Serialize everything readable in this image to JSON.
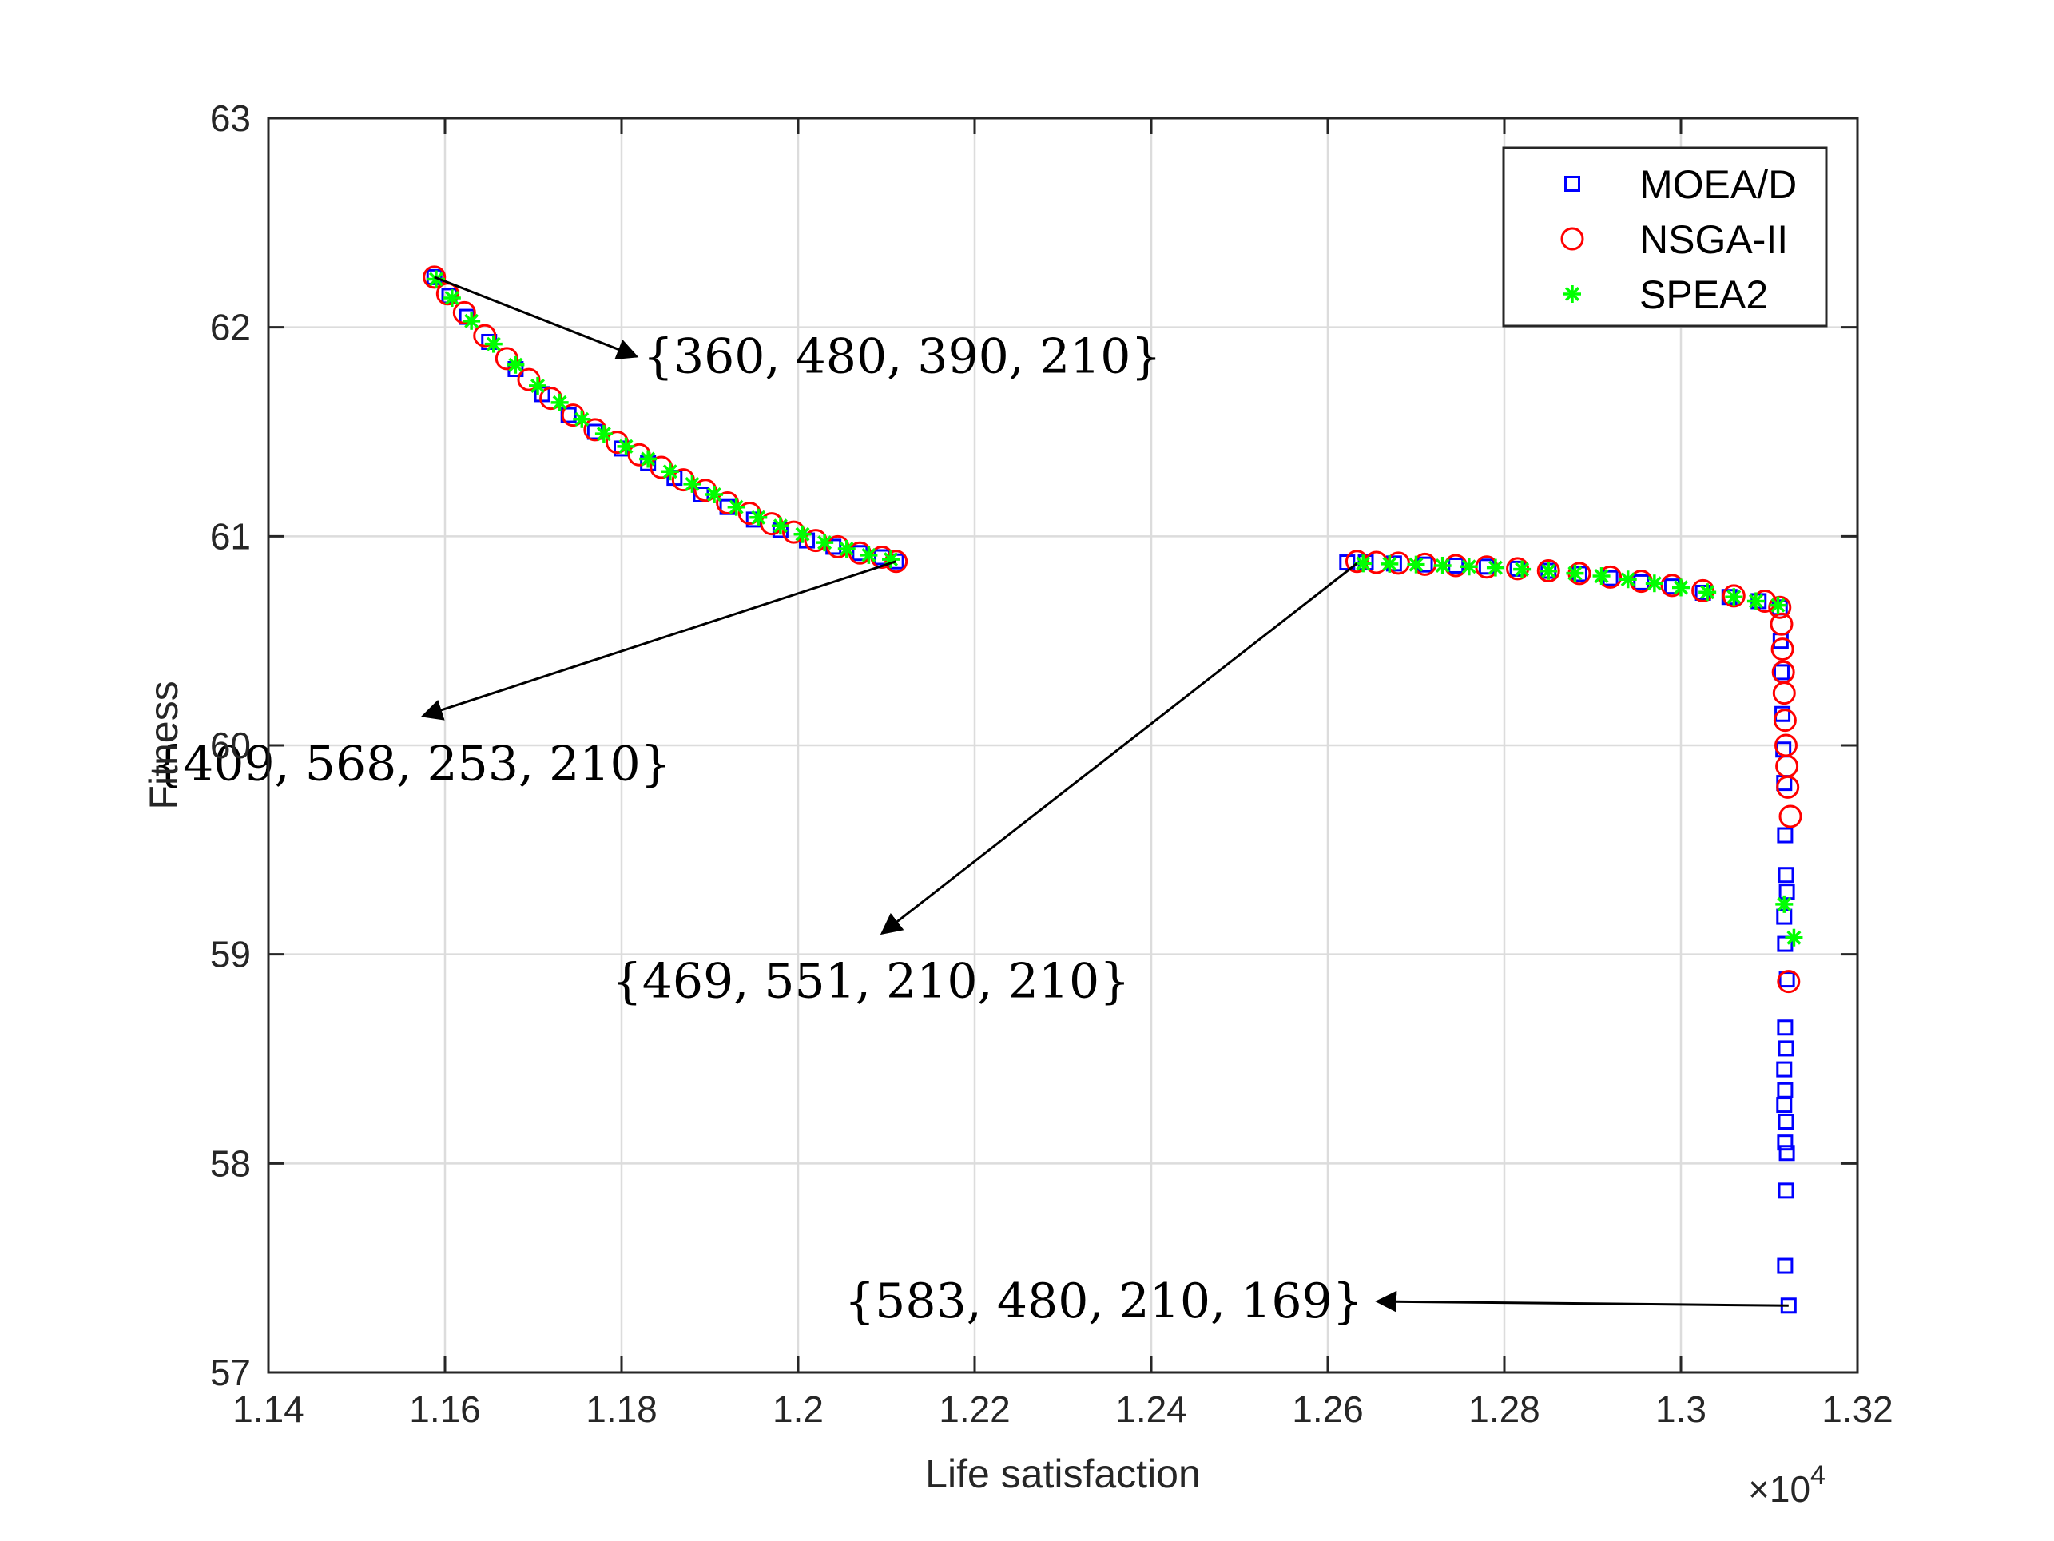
{
  "chart_data": {
    "type": "scatter",
    "title": "",
    "xlabel": "Life satisfaction",
    "ylabel": "Fitness",
    "x_exponent_label": "×10",
    "x_exponent_power": "4",
    "xlim": [
      1.14,
      1.32
    ],
    "ylim": [
      57,
      63
    ],
    "x_ticks": [
      "1.14",
      "1.16",
      "1.18",
      "1.2",
      "1.22",
      "1.24",
      "1.26",
      "1.28",
      "1.3",
      "1.32"
    ],
    "y_ticks": [
      "57",
      "58",
      "59",
      "60",
      "61",
      "62",
      "63"
    ],
    "grid": true,
    "legend_position": "top-right",
    "series": [
      {
        "name": "MOEA/D",
        "marker": "square",
        "color": "#0000ff",
        "points": [
          [
            1.1588,
            62.24
          ],
          [
            1.1605,
            62.15
          ],
          [
            1.1625,
            62.05
          ],
          [
            1.165,
            61.93
          ],
          [
            1.168,
            61.8
          ],
          [
            1.171,
            61.68
          ],
          [
            1.174,
            61.58
          ],
          [
            1.177,
            61.5
          ],
          [
            1.18,
            61.42
          ],
          [
            1.183,
            61.35
          ],
          [
            1.186,
            61.28
          ],
          [
            1.189,
            61.2
          ],
          [
            1.192,
            61.14
          ],
          [
            1.195,
            61.08
          ],
          [
            1.198,
            61.03
          ],
          [
            1.201,
            60.98
          ],
          [
            1.204,
            60.95
          ],
          [
            1.207,
            60.92
          ],
          [
            1.2095,
            60.9
          ],
          [
            1.2111,
            60.88
          ],
          [
            1.2622,
            60.875
          ],
          [
            1.2643,
            60.875
          ],
          [
            1.2675,
            60.87
          ],
          [
            1.271,
            60.865
          ],
          [
            1.2745,
            60.86
          ],
          [
            1.278,
            60.855
          ],
          [
            1.2815,
            60.845
          ],
          [
            1.285,
            60.835
          ],
          [
            1.2885,
            60.82
          ],
          [
            1.292,
            60.8
          ],
          [
            1.2955,
            60.78
          ],
          [
            1.299,
            60.76
          ],
          [
            1.3025,
            60.73
          ],
          [
            1.3055,
            60.71
          ],
          [
            1.3088,
            60.69
          ],
          [
            1.3112,
            60.66
          ],
          [
            1.3113,
            60.5
          ],
          [
            1.3114,
            60.35
          ],
          [
            1.3115,
            60.15
          ],
          [
            1.3116,
            59.98
          ],
          [
            1.3117,
            59.82
          ],
          [
            1.3118,
            59.57
          ],
          [
            1.3119,
            59.38
          ],
          [
            1.312,
            59.3
          ],
          [
            1.3117,
            59.18
          ],
          [
            1.3118,
            59.05
          ],
          [
            1.312,
            58.88
          ],
          [
            1.3118,
            58.65
          ],
          [
            1.3119,
            58.55
          ],
          [
            1.3117,
            58.45
          ],
          [
            1.3118,
            58.35
          ],
          [
            1.3117,
            58.28
          ],
          [
            1.3119,
            58.2
          ],
          [
            1.3118,
            58.1
          ],
          [
            1.312,
            58.05
          ],
          [
            1.3119,
            57.87
          ],
          [
            1.3118,
            57.51
          ],
          [
            1.3122,
            57.32
          ]
        ]
      },
      {
        "name": "NSGA-II",
        "marker": "circle",
        "color": "#ff0000",
        "points": [
          [
            1.1588,
            62.24
          ],
          [
            1.1603,
            62.16
          ],
          [
            1.1622,
            62.07
          ],
          [
            1.1645,
            61.96
          ],
          [
            1.167,
            61.85
          ],
          [
            1.1695,
            61.75
          ],
          [
            1.172,
            61.66
          ],
          [
            1.1745,
            61.58
          ],
          [
            1.177,
            61.51
          ],
          [
            1.1795,
            61.45
          ],
          [
            1.182,
            61.39
          ],
          [
            1.1845,
            61.33
          ],
          [
            1.187,
            61.27
          ],
          [
            1.1895,
            61.22
          ],
          [
            1.192,
            61.16
          ],
          [
            1.1945,
            61.11
          ],
          [
            1.197,
            61.06
          ],
          [
            1.1995,
            61.02
          ],
          [
            1.202,
            60.98
          ],
          [
            1.2045,
            60.95
          ],
          [
            1.207,
            60.92
          ],
          [
            1.2095,
            60.9
          ],
          [
            1.2111,
            60.88
          ],
          [
            1.2633,
            60.88
          ],
          [
            1.2655,
            60.875
          ],
          [
            1.268,
            60.872
          ],
          [
            1.271,
            60.866
          ],
          [
            1.2745,
            60.86
          ],
          [
            1.278,
            60.853
          ],
          [
            1.2815,
            60.845
          ],
          [
            1.285,
            60.835
          ],
          [
            1.2885,
            60.822
          ],
          [
            1.292,
            60.805
          ],
          [
            1.2955,
            60.785
          ],
          [
            1.299,
            60.765
          ],
          [
            1.3025,
            60.74
          ],
          [
            1.306,
            60.715
          ],
          [
            1.3095,
            60.69
          ],
          [
            1.3112,
            60.66
          ],
          [
            1.3114,
            60.58
          ],
          [
            1.3115,
            60.46
          ],
          [
            1.3116,
            60.35
          ],
          [
            1.3117,
            60.25
          ],
          [
            1.3118,
            60.12
          ],
          [
            1.3119,
            60.0
          ],
          [
            1.312,
            59.9
          ],
          [
            1.3121,
            59.8
          ],
          [
            1.3124,
            59.66
          ],
          [
            1.3122,
            58.87
          ]
        ]
      },
      {
        "name": "SPEA2",
        "marker": "asterisk",
        "color": "#00ff00",
        "points": [
          [
            1.159,
            62.23
          ],
          [
            1.1608,
            62.14
          ],
          [
            1.163,
            62.03
          ],
          [
            1.1655,
            61.92
          ],
          [
            1.168,
            61.82
          ],
          [
            1.1705,
            61.72
          ],
          [
            1.173,
            61.64
          ],
          [
            1.1755,
            61.56
          ],
          [
            1.178,
            61.49
          ],
          [
            1.1805,
            61.43
          ],
          [
            1.183,
            61.37
          ],
          [
            1.1855,
            61.31
          ],
          [
            1.188,
            61.25
          ],
          [
            1.1905,
            61.2
          ],
          [
            1.193,
            61.14
          ],
          [
            1.1955,
            61.09
          ],
          [
            1.198,
            61.05
          ],
          [
            1.2005,
            61.01
          ],
          [
            1.203,
            60.97
          ],
          [
            1.2055,
            60.94
          ],
          [
            1.208,
            60.91
          ],
          [
            1.2105,
            60.89
          ],
          [
            1.264,
            60.87
          ],
          [
            1.267,
            60.868
          ],
          [
            1.27,
            60.865
          ],
          [
            1.273,
            60.86
          ],
          [
            1.276,
            60.855
          ],
          [
            1.279,
            60.85
          ],
          [
            1.282,
            60.842
          ],
          [
            1.285,
            60.834
          ],
          [
            1.288,
            60.823
          ],
          [
            1.291,
            60.81
          ],
          [
            1.294,
            60.794
          ],
          [
            1.297,
            60.775
          ],
          [
            1.3,
            60.755
          ],
          [
            1.303,
            60.733
          ],
          [
            1.306,
            60.71
          ],
          [
            1.3085,
            60.69
          ],
          [
            1.311,
            60.67
          ],
          [
            1.3117,
            59.24
          ],
          [
            1.3128,
            59.08
          ]
        ]
      }
    ],
    "annotations": [
      {
        "text": "{360, 480, 390, 210}",
        "point": [
          1.1588,
          62.24
        ],
        "text_at": [
          1.1817,
          61.86
        ]
      },
      {
        "text": "{409, 568, 253, 210}",
        "point": [
          1.2111,
          60.88
        ],
        "text_at": [
          1.1575,
          60.14
        ]
      },
      {
        "text": "{469, 551, 210, 210}",
        "point": [
          1.2633,
          60.87
        ],
        "text_at": [
          1.2095,
          59.1
        ]
      },
      {
        "text": "{583, 480, 210, 169}",
        "point": [
          1.3122,
          57.32
        ],
        "text_at": [
          1.2656,
          57.34
        ]
      }
    ]
  }
}
